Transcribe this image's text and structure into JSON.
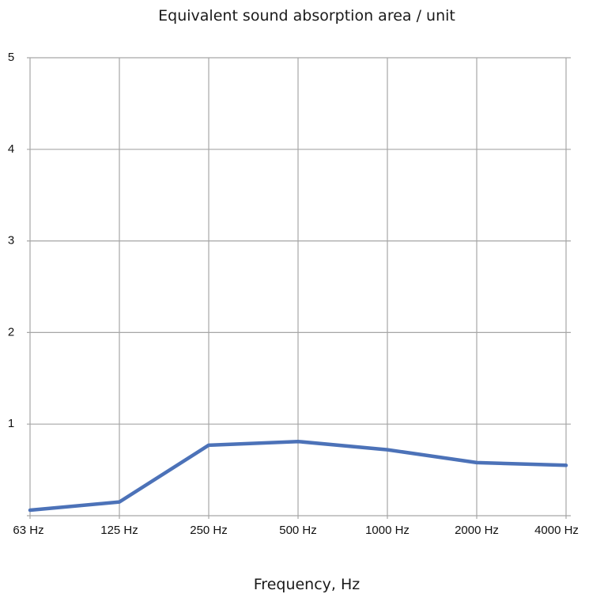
{
  "chart_data": {
    "type": "line",
    "title": "Equivalent sound absorption area / unit",
    "xlabel": "Frequency, Hz",
    "ylabel": "",
    "categories": [
      "63 Hz",
      "125 Hz",
      "250 Hz",
      "500 Hz",
      "1000 Hz",
      "2000 Hz",
      "4000 Hz"
    ],
    "series": [
      {
        "values": [
          0.06,
          0.15,
          0.77,
          0.81,
          0.72,
          0.58,
          0.55
        ]
      }
    ],
    "ylim": [
      0,
      5
    ],
    "yticks": [
      "1",
      "2",
      "3",
      "4",
      "5"
    ],
    "grid": true,
    "legend": "none",
    "colors": {
      "line": "#4c72b8",
      "grid": "#a6a6a6"
    }
  }
}
